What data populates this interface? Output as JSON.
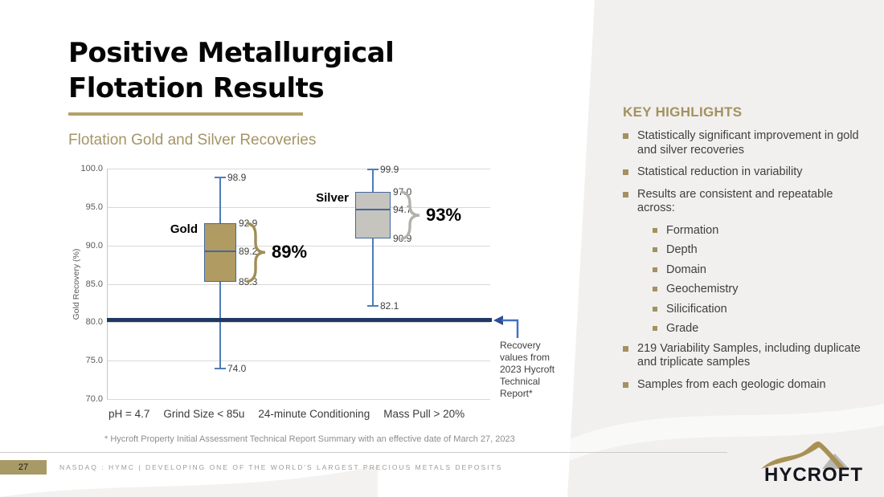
{
  "slide": {
    "title_line1": "Positive Metallurgical",
    "title_line2": "Flotation Results",
    "subtitle": "Flotation Gold and Silver Recoveries"
  },
  "chart_data": {
    "type": "boxplot",
    "title": "Flotation Gold and Silver Recoveries",
    "ylabel": "Gold Recovery (%)",
    "ylim": [
      70,
      100
    ],
    "ytick_step": 5,
    "grid": true,
    "series": [
      {
        "name": "Gold",
        "min": 74.0,
        "q1": 85.3,
        "median": 89.2,
        "q3": 92.9,
        "max": 98.9,
        "summary_label": "89%",
        "box_color": "#b09b63",
        "brace_color": "#a08d58"
      },
      {
        "name": "Silver",
        "min": 82.1,
        "q1": 90.9,
        "median": 94.7,
        "q3": 97.0,
        "max": 99.9,
        "summary_label": "93%",
        "box_color": "#c6c4be",
        "brace_color": "#b2b1ab"
      }
    ],
    "reference_line": {
      "value": 80.3,
      "color": "#1f3864"
    },
    "reference_annotation": "Recovery values from 2023 Hycroft Technical Report*",
    "conditions": [
      "pH = 4.7",
      "Grind Size < 85u",
      "24-minute Conditioning",
      "Mass Pull > 20%"
    ],
    "footnote": "* Hycroft Property Initial Assessment Technical Report Summary with an effective date of March 27, 2023"
  },
  "highlights": {
    "heading": "KEY HIGHLIGHTS",
    "items": [
      {
        "level": 1,
        "text": "Statistically significant improvement in gold and silver recoveries"
      },
      {
        "level": 1,
        "text": "Statistical reduction in variability"
      },
      {
        "level": 1,
        "text": "Results are consistent and repeatable across:"
      },
      {
        "level": 2,
        "text": "Formation"
      },
      {
        "level": 2,
        "text": "Depth"
      },
      {
        "level": 2,
        "text": "Domain"
      },
      {
        "level": 2,
        "text": "Geochemistry"
      },
      {
        "level": 2,
        "text": "Silicification"
      },
      {
        "level": 2,
        "text": "Grade"
      },
      {
        "level": 1,
        "text": "219 Variability Samples, including duplicate and triplicate samples"
      },
      {
        "level": 1,
        "text": "Samples from each geologic domain"
      }
    ]
  },
  "footer": {
    "page_number": "27",
    "ticker_text": "NASDAQ : HYMC | DEVELOPING ONE OF THE WORLD'S LARGEST PRECIOUS METALS DEPOSITS"
  },
  "logo": {
    "text": "HYCROFT"
  },
  "colors": {
    "accent_gold": "#a39161",
    "panel_bg": "#f1f0ee",
    "box_border_blue": "#44689d",
    "whisker_blue": "#4f7db8",
    "reference_navy": "#1f3864",
    "arrow_blue": "#4472c4"
  }
}
